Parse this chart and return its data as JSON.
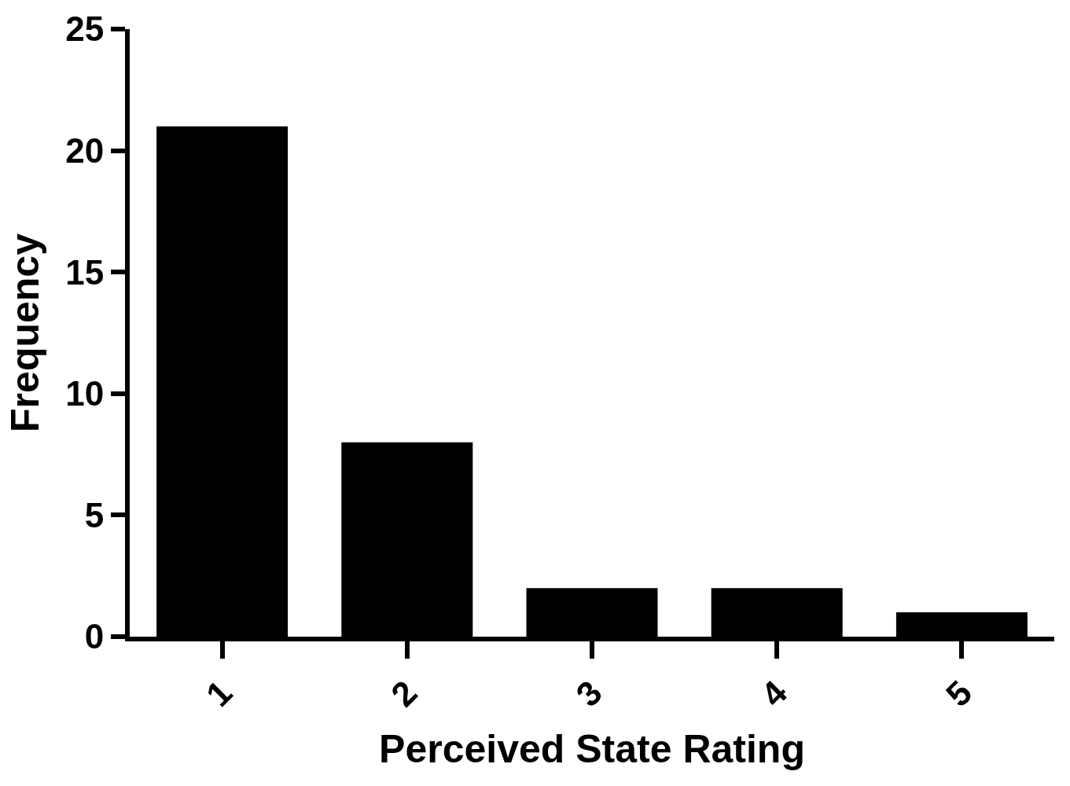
{
  "chart_data": {
    "type": "bar",
    "xlabel": "Perceived State Rating",
    "ylabel": "Frequency",
    "categories": [
      "1",
      "2",
      "3",
      "4",
      "5"
    ],
    "values": [
      21,
      8,
      2,
      2,
      1
    ],
    "color": "#000000",
    "ylim": [
      0,
      25
    ],
    "yticks": [
      0,
      5,
      10,
      15,
      20,
      25
    ]
  }
}
